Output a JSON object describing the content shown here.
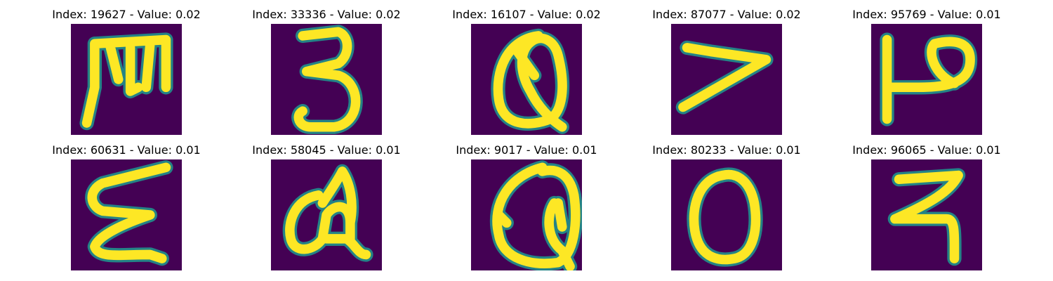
{
  "colormap": {
    "background": "#440154",
    "foreground": "#fde725",
    "edge": "#21918c"
  },
  "panels": [
    {
      "title": "Index: 19627 - Value: 0.02",
      "glyph": "M"
    },
    {
      "title": "Index: 33336 - Value: 0.02",
      "glyph": "3"
    },
    {
      "title": "Index: 16107 - Value: 0.02",
      "glyph": "Q"
    },
    {
      "title": "Index: 87077 - Value: 0.02",
      "glyph": "7"
    },
    {
      "title": "Index: 95769 - Value: 0.01",
      "glyph": "P"
    },
    {
      "title": "Index: 60631 - Value: 0.01",
      "glyph": "E"
    },
    {
      "title": "Index: 58045 - Value: 0.01",
      "glyph": "G"
    },
    {
      "title": "Index: 9017 - Value: 0.01",
      "glyph": "Q"
    },
    {
      "title": "Index: 80233 - Value: 0.01",
      "glyph": "O"
    },
    {
      "title": "Index: 96065 - Value: 0.01",
      "glyph": "R"
    }
  ]
}
